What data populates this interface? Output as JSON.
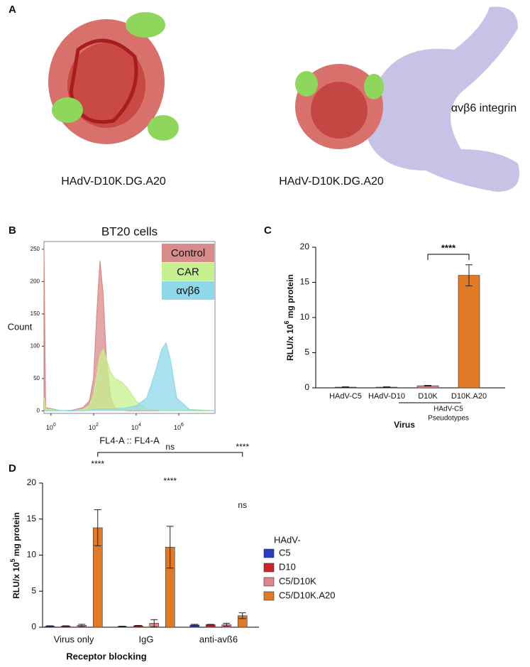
{
  "panel_labels": [
    "A",
    "B",
    "C",
    "D"
  ],
  "structure": {
    "labels": [
      "HAdV-D10K.DG.A20",
      "HAdV-D10K.DG.A20",
      "αvβ6 integrin"
    ]
  },
  "chart_data": [
    {
      "type": "area",
      "title": "BT20 cells",
      "xlabel": "FL4-A :: FL4-A",
      "ylabel": "Count",
      "xscale": "log",
      "x": [
        0.47,
        0.56,
        3.16,
        10,
        31.6,
        63,
        100,
        141,
        200,
        282,
        398,
        631,
        1000,
        1995,
        3981,
        10000,
        31623,
        79433,
        158489,
        251189,
        398107,
        794328,
        3162278,
        50118723
      ],
      "series": [
        {
          "name": "Control",
          "color": "#d98a8a",
          "values": [
            250,
            5,
            0,
            1,
            5,
            15,
            50,
            150,
            232,
            180,
            80,
            20,
            5,
            1,
            0,
            0,
            0,
            0,
            0,
            0,
            0,
            0,
            0,
            0
          ]
        },
        {
          "name": "CAR",
          "color": "#c6f08f",
          "values": [
            20,
            3,
            0,
            0,
            2,
            8,
            25,
            55,
            85,
            95,
            80,
            60,
            50,
            45,
            35,
            15,
            3,
            1,
            0,
            0,
            0,
            0,
            0,
            0
          ]
        },
        {
          "name": "αvβ6",
          "color": "#8fd8ea",
          "values": [
            0,
            0,
            0,
            0,
            0,
            1,
            2,
            3,
            3,
            3,
            3,
            3,
            3,
            4,
            5,
            8,
            20,
            60,
            95,
            105,
            80,
            20,
            2,
            0
          ]
        }
      ],
      "xlim": [
        0.47,
        50118723
      ],
      "xticks": [
        {
          "value": 1,
          "label": "10",
          "label_sup": "0"
        },
        {
          "value": 100,
          "label": "10",
          "label_sup": "2"
        },
        {
          "value": 10000,
          "label": "10",
          "label_sup": "4"
        },
        {
          "value": 1000000,
          "label": "10",
          "label_sup": "6"
        }
      ],
      "ylim": [
        -4,
        262
      ],
      "yticks": [
        0,
        50,
        100,
        150,
        200,
        250
      ]
    },
    {
      "type": "bar",
      "xlabel": "Virus",
      "ylabel_parts": [
        "RLU/x 10",
        "6",
        " mg protein"
      ],
      "categories": [
        "HAdV-C5",
        "HAdV-D10",
        "D10K",
        "D10K.A20"
      ],
      "values": [
        0.1,
        0.1,
        0.3,
        16
      ],
      "errors": [
        0.05,
        0.05,
        0.05,
        1.5
      ],
      "colors": [
        "#2b3cc4",
        "#c9252b",
        "#e0868a",
        "#e07a26"
      ],
      "group_label": [
        "HAdV-C5",
        "Pseudotypes"
      ],
      "annotations": [
        "****"
      ],
      "ylim": [
        0,
        20
      ],
      "yticks": [
        0,
        5,
        10,
        15,
        20
      ]
    },
    {
      "type": "bar",
      "xlabel": "Receptor blocking",
      "ylabel_parts": [
        "RLU/x 10",
        "5",
        " mg protein"
      ],
      "legend_title": "HAdV-",
      "categories": [
        "Virus only",
        "IgG",
        "anti-avß6"
      ],
      "series": [
        {
          "name": "C5",
          "color": "#2b3cc4",
          "values": [
            0.15,
            0.1,
            0.3
          ],
          "errors": [
            0.05,
            0.05,
            0.1
          ]
        },
        {
          "name": "D10",
          "color": "#c9252b",
          "values": [
            0.15,
            0.2,
            0.35
          ],
          "errors": [
            0.05,
            0.05,
            0.05
          ]
        },
        {
          "name": "C5/D10K",
          "color": "#e0868a",
          "values": [
            0.25,
            0.55,
            0.35
          ],
          "errors": [
            0.15,
            0.5,
            0.2
          ]
        },
        {
          "name": "C5/D10K.A20",
          "color": "#e07a26",
          "values": [
            13.8,
            11.1,
            1.6
          ],
          "errors": [
            2.5,
            2.9,
            0.4
          ]
        }
      ],
      "annotations": [
        "****",
        "****",
        "ns",
        "****",
        "ns"
      ],
      "ylim": [
        0,
        20
      ],
      "yticks": [
        0,
        5,
        10,
        15,
        20
      ]
    }
  ]
}
